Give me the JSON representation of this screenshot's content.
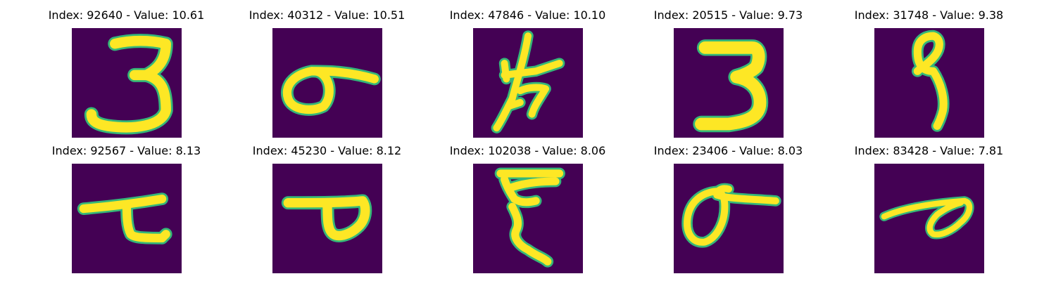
{
  "figure": {
    "panels": [
      {
        "index": "92640",
        "value": "10.61",
        "title": "Index: 92640 - Value: 10.61",
        "glyph": "three-a"
      },
      {
        "index": "40312",
        "value": "10.51",
        "title": "Index: 40312 - Value: 10.51",
        "glyph": "loop-swoosh-a"
      },
      {
        "index": "47846",
        "value": "10.10",
        "title": "Index: 47846 - Value: 10.10",
        "glyph": "cross-strokes"
      },
      {
        "index": "20515",
        "value": "9.73",
        "title": "Index: 20515 - Value: 9.73",
        "glyph": "three-b"
      },
      {
        "index": "31748",
        "value": "9.38",
        "title": "Index: 31748 - Value: 9.38",
        "glyph": "nine"
      },
      {
        "index": "92567",
        "value": "8.13",
        "title": "Index: 92567 - Value: 8.13",
        "glyph": "bar-hook"
      },
      {
        "index": "45230",
        "value": "8.12",
        "title": "Index: 45230 - Value: 8.12",
        "glyph": "bar-loop"
      },
      {
        "index": "102038",
        "value": "8.06",
        "title": "Index: 102038 - Value: 8.06",
        "glyph": "zigzag"
      },
      {
        "index": "23406",
        "value": "8.03",
        "title": "Index: 23406 - Value: 8.03",
        "glyph": "loop-swoosh-b"
      },
      {
        "index": "83428",
        "value": "7.81",
        "title": "Index: 83428 - Value: 7.81",
        "glyph": "flat-loop"
      }
    ]
  },
  "colors": {
    "background": "#440154",
    "stroke": "#fde725",
    "edge": "#35b779",
    "page": "#ffffff",
    "text": "#000000"
  }
}
